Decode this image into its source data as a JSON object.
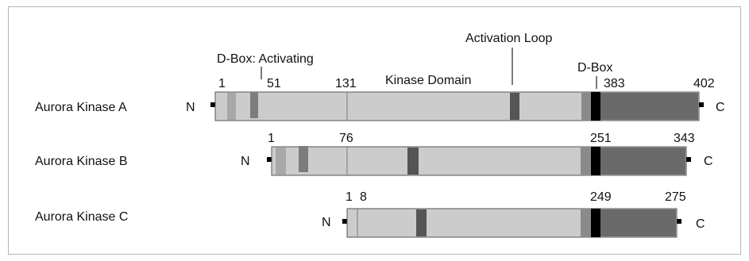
{
  "annotations": {
    "d_box_activating": "D-Box: Activating",
    "activation_loop": "Activation Loop",
    "kinase_domain": "Kinase Domain",
    "d_box": "D-Box"
  },
  "terminal_labels": {
    "n": "N",
    "c": "C"
  },
  "colors": {
    "bar": "#cccccc",
    "outline": "#555555",
    "box_light": "#a8a8a8",
    "box_mid": "#7d7d7d",
    "motif_dark": "#555555",
    "c_terminal_dark": "#6a6a6a",
    "c_terminal_mid": "#8a8a8a",
    "d_box": "#000000",
    "terminal_square": "#000000"
  },
  "proteins": [
    {
      "name": "Aurora Kinase A",
      "length": 402,
      "kinase_domain_start": 131,
      "c_terminal_start": 383,
      "position_labels": [
        {
          "text": "1"
        },
        {
          "text": "51"
        },
        {
          "text": "131"
        },
        {
          "text": "383"
        },
        {
          "text": "402"
        }
      ]
    },
    {
      "name": "Aurora Kinase B",
      "length": 343,
      "kinase_domain_start": 76,
      "c_terminal_start": 251,
      "position_labels": [
        {
          "text": "1"
        },
        {
          "text": "76"
        },
        {
          "text": "251"
        },
        {
          "text": "343"
        }
      ]
    },
    {
      "name": "Aurora Kinase C",
      "length": 275,
      "kinase_domain_start": 8,
      "c_terminal_start": 249,
      "position_labels": [
        {
          "text": "1"
        },
        {
          "text": "8"
        },
        {
          "text": "249"
        },
        {
          "text": "275"
        }
      ]
    }
  ]
}
